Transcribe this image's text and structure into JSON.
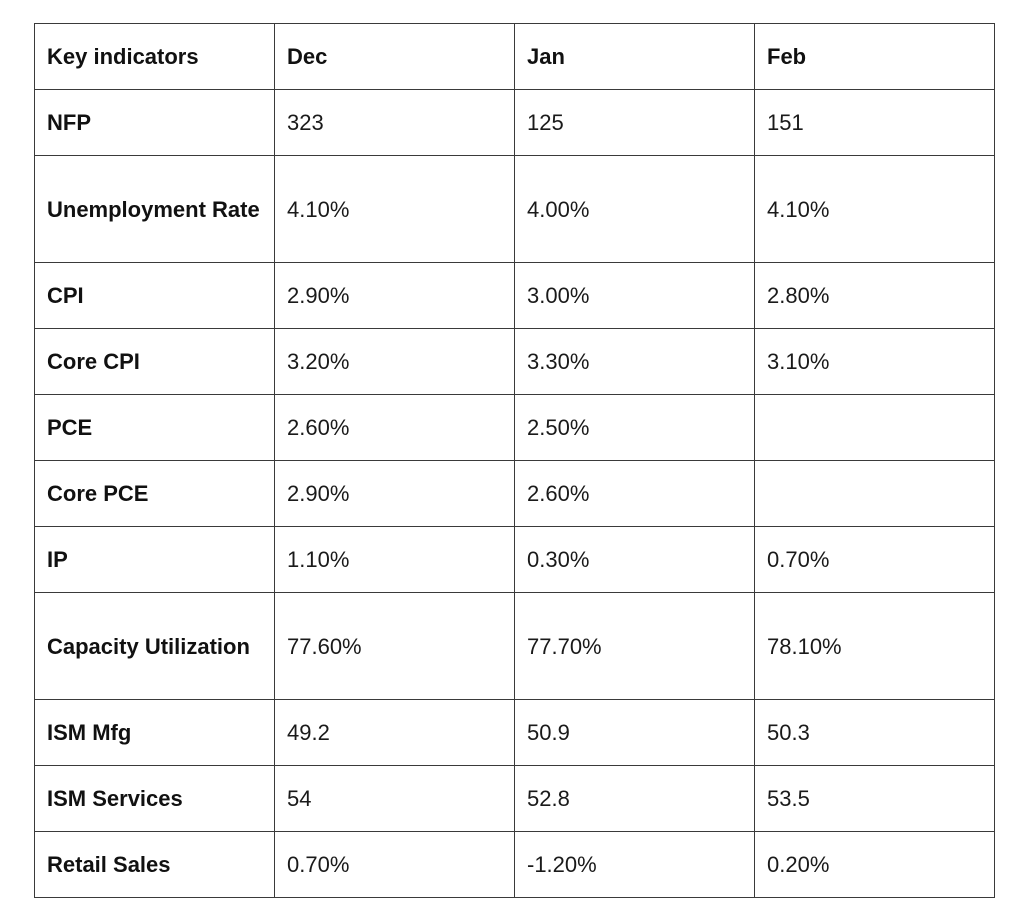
{
  "table": {
    "headers": [
      "Key indicators",
      "Dec",
      "Jan",
      "Feb"
    ],
    "rows": [
      {
        "indicator": "NFP",
        "dec": "323",
        "jan": "125",
        "feb": "151"
      },
      {
        "indicator": "Unemployment Rate",
        "dec": "4.10%",
        "jan": "4.00%",
        "feb": "4.10%"
      },
      {
        "indicator": "CPI",
        "dec": "2.90%",
        "jan": "3.00%",
        "feb": "2.80%"
      },
      {
        "indicator": "Core CPI",
        "dec": "3.20%",
        "jan": "3.30%",
        "feb": "3.10%"
      },
      {
        "indicator": "PCE",
        "dec": "2.60%",
        "jan": "2.50%",
        "feb": ""
      },
      {
        "indicator": "Core PCE",
        "dec": "2.90%",
        "jan": "2.60%",
        "feb": ""
      },
      {
        "indicator": "IP",
        "dec": "1.10%",
        "jan": "0.30%",
        "feb": "0.70%"
      },
      {
        "indicator": "Capacity Utilization",
        "dec": "77.60%",
        "jan": "77.70%",
        "feb": "78.10%"
      },
      {
        "indicator": "ISM Mfg",
        "dec": "49.2",
        "jan": "50.9",
        "feb": "50.3"
      },
      {
        "indicator": "ISM Services",
        "dec": "54",
        "jan": "52.8",
        "feb": "53.5"
      },
      {
        "indicator": "Retail Sales",
        "dec": "0.70%",
        "jan": "-1.20%",
        "feb": "0.20%"
      }
    ]
  }
}
